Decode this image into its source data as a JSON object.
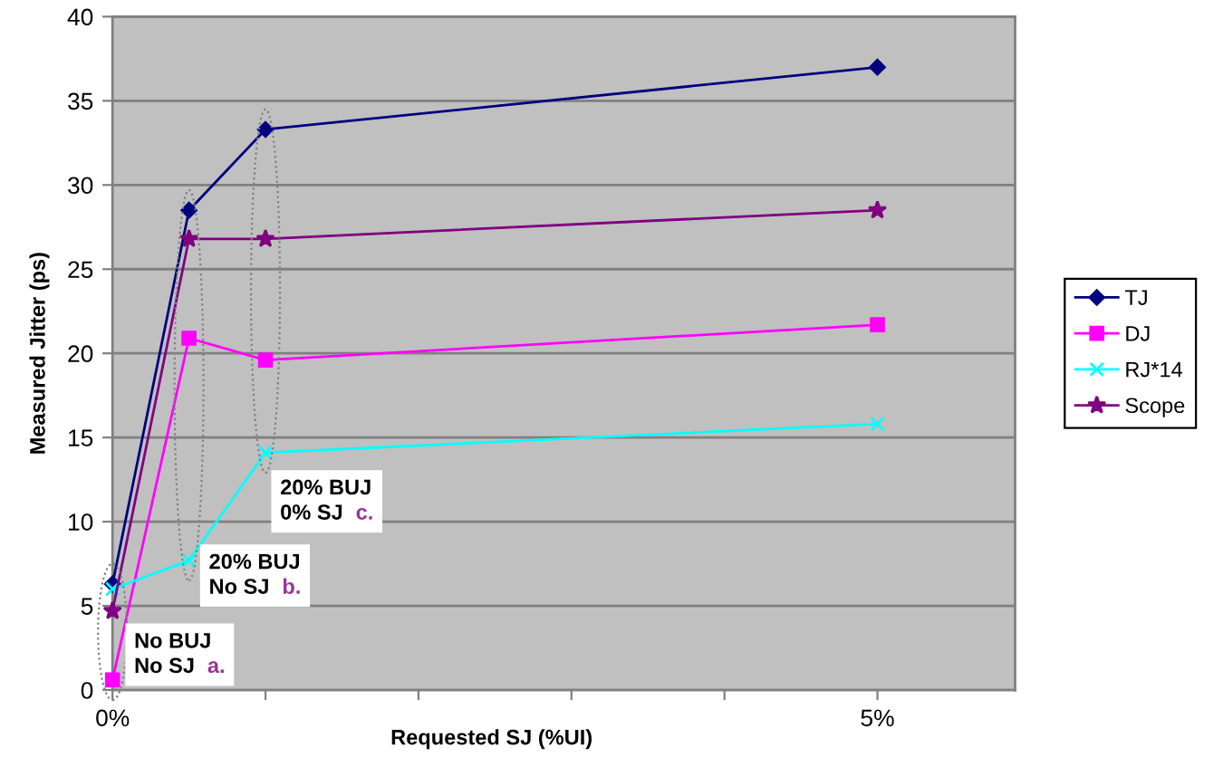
{
  "chart_data": {
    "type": "line",
    "xlabel": "Requested SJ (%UI)",
    "ylabel": "Measured Jitter (ps)",
    "x": [
      0,
      0.5,
      1,
      5
    ],
    "series": [
      {
        "name": "TJ",
        "color": "#000080",
        "marker": "diamond",
        "values": [
          6.3,
          28.5,
          33.3,
          37.0
        ]
      },
      {
        "name": "DJ",
        "color": "#ff00ff",
        "marker": "square",
        "values": [
          0.6,
          20.9,
          19.6,
          21.7
        ]
      },
      {
        "name": "RJ*14",
        "color": "#00ffff",
        "marker": "cross",
        "values": [
          6.0,
          7.7,
          14.1,
          15.8
        ]
      },
      {
        "name": "Scope",
        "color": "#800080",
        "marker": "star",
        "values": [
          4.7,
          26.8,
          26.8,
          28.5
        ]
      }
    ],
    "xlim": [
      0,
      5.9
    ],
    "xticks": [
      {
        "value": 0,
        "label": "0%"
      },
      {
        "value": 1,
        "label": null
      },
      {
        "value": 2,
        "label": null
      },
      {
        "value": 3,
        "label": null
      },
      {
        "value": 4,
        "label": null
      },
      {
        "value": 5,
        "label": "5%"
      }
    ],
    "ylim": [
      0,
      40
    ],
    "yticks": [
      0,
      5,
      10,
      15,
      20,
      25,
      30,
      35,
      40
    ],
    "grid": "y",
    "legend": "right",
    "line_style": "solid",
    "annotations": [
      {
        "text": "No BUJ\nNo SJ a.",
        "x": 0,
        "y": 0.6
      },
      {
        "text": "20% BUJ\nNo SJ b.",
        "x": 0.5,
        "y": 7.7
      },
      {
        "text": "20% BUJ\n0% SJ c.",
        "x": 1,
        "y": 14.1
      }
    ]
  }
}
